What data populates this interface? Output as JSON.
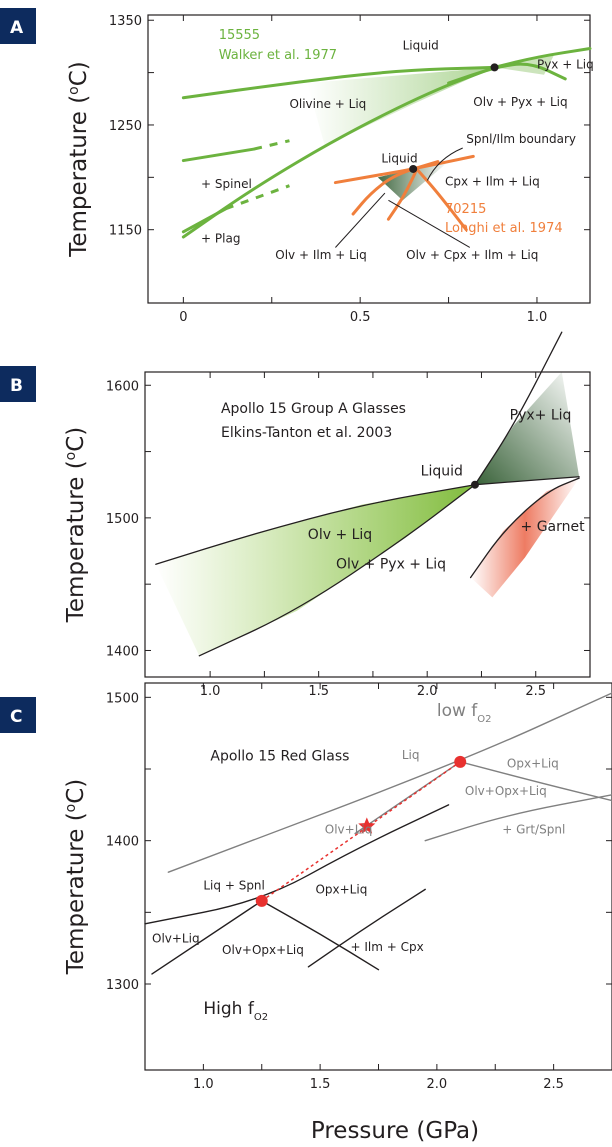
{
  "colors": {
    "green": "#6cb33f",
    "orange": "#f07f3c",
    "grey": "#808080",
    "black": "#231f20",
    "red": "#e8312f",
    "panel_tag": "#0d2b5e"
  },
  "x_axis_label": "Pressure (GPa)",
  "chart_data": [
    {
      "panel": "A",
      "type": "line",
      "ylabel": "Temperature (oC)",
      "xlim": [
        -0.1,
        1.15
      ],
      "ylim": [
        1080,
        1355
      ],
      "xticks": [
        0,
        0.5,
        1.0
      ],
      "xtick_labels": [
        "0",
        "0.5",
        "1.0"
      ],
      "yticks": [
        1150,
        1250,
        1350
      ],
      "ytick_labels": [
        "1150",
        "1250",
        "1350"
      ],
      "annotations": {
        "series_15555": "15555",
        "walker": "Walker et al. 1977",
        "liquid_top": "Liquid",
        "pyx_liq": "Pyx + Liq",
        "olivine_liq": "Olivine + Liq",
        "olv_pyx_liq": "Olv + Pyx + Liq",
        "spnl_ilm": "Spnl/Ilm boundary",
        "liquid_mid": "Liquid",
        "cpx_ilm_liq": "Cpx + Ilm + Liq",
        "spinel": "+ Spinel",
        "series_70215": "70215",
        "longhi": "Longhi et al. 1974",
        "plag": "+ Plag",
        "olv_ilm_liq": "Olv + Ilm + Liq",
        "olv_cpx_ilm_liq": "Olv + Cpx + Ilm + Liq"
      },
      "lines": [
        {
          "name": "15555 liquidus (olivine)",
          "color": "green",
          "points": [
            [
              0,
              1276
            ],
            [
              0.3,
              1290
            ],
            [
              0.6,
              1302
            ],
            [
              0.88,
              1305
            ]
          ]
        },
        {
          "name": "15555 liquidus (pyroxene)",
          "color": "green",
          "points": [
            [
              0.88,
              1305
            ],
            [
              1.0,
              1315
            ],
            [
              1.15,
              1323
            ]
          ]
        },
        {
          "name": "15555 olivine-in lower",
          "color": "green",
          "points": [
            [
              0,
              1143
            ],
            [
              0.2,
              1190
            ],
            [
              0.45,
              1240
            ],
            [
              0.7,
              1282
            ],
            [
              0.88,
              1305
            ]
          ]
        },
        {
          "name": "15555 pyx-in",
          "color": "green",
          "points": [
            [
              0.75,
              1290
            ],
            [
              0.88,
              1305
            ],
            [
              0.98,
              1310
            ],
            [
              1.08,
              1294
            ]
          ]
        },
        {
          "name": "15555 spinel",
          "color": "green",
          "points": [
            [
              0,
              1216
            ],
            [
              0.2,
              1227
            ]
          ],
          "dashed_to": [
            [
              0.2,
              1227
            ],
            [
              0.3,
              1235
            ]
          ]
        },
        {
          "name": "15555 plag",
          "color": "green",
          "points": [
            [
              0,
              1148
            ],
            [
              0.12,
              1170
            ]
          ],
          "dashed_to": [
            [
              0.12,
              1170
            ],
            [
              0.3,
              1192
            ]
          ]
        },
        {
          "name": "70215 liquidus",
          "color": "orange",
          "points": [
            [
              0.43,
              1195
            ],
            [
              0.55,
              1202
            ],
            [
              0.65,
              1208
            ],
            [
              0.82,
              1220
            ]
          ]
        },
        {
          "name": "70215 ilm-in",
          "color": "orange",
          "points": [
            [
              0.48,
              1165
            ],
            [
              0.53,
              1185
            ],
            [
              0.6,
              1203
            ],
            [
              0.72,
              1215
            ]
          ]
        },
        {
          "name": "70215 cpx-in",
          "color": "orange",
          "points": [
            [
              0.58,
              1160
            ],
            [
              0.62,
              1180
            ],
            [
              0.65,
              1200
            ],
            [
              0.66,
              1208
            ]
          ]
        },
        {
          "name": "70215 extra",
          "color": "orange",
          "points": [
            [
              0.66,
              1208
            ],
            [
              0.72,
              1185
            ],
            [
              0.8,
              1150
            ]
          ]
        }
      ],
      "points": [
        [
          0.88,
          1305
        ],
        [
          0.65,
          1208
        ]
      ]
    },
    {
      "panel": "B",
      "type": "line",
      "ylabel": "Temperature (oC)",
      "xlim": [
        0.7,
        2.75
      ],
      "ylim": [
        1380,
        1610
      ],
      "xticks": [
        1.0,
        1.5,
        2.0,
        2.5
      ],
      "xtick_labels": [
        "1.0",
        "1.5",
        "2.0",
        "2.5"
      ],
      "yticks": [
        1400,
        1500,
        1600
      ],
      "ytick_labels": [
        "1400",
        "1500",
        "1600"
      ],
      "annotations": {
        "title1": "Apollo 15 Group A Glasses",
        "title2": "Elkins-Tanton et al. 2003",
        "liquid": "Liquid",
        "pyx_liq": "Pyx+ Liq",
        "olv_liq": "Olv + Liq",
        "garnet": "+ Garnet",
        "olv_pyx_liq": "Olv + Pyx + Liq"
      },
      "lines": [
        {
          "name": "liquidus (olivine)",
          "points": [
            [
              0.75,
              1465
            ],
            [
              1.2,
              1488
            ],
            [
              1.7,
              1510
            ],
            [
              2.22,
              1525
            ]
          ]
        },
        {
          "name": "liquidus (pyroxene)",
          "points": [
            [
              2.22,
              1525
            ],
            [
              2.45,
              1528
            ],
            [
              2.7,
              1531
            ]
          ]
        },
        {
          "name": "pyx-in",
          "points": [
            [
              0.95,
              1396
            ],
            [
              1.4,
              1430
            ],
            [
              1.9,
              1485
            ],
            [
              2.22,
              1525
            ]
          ]
        },
        {
          "name": "pyx upper",
          "points": [
            [
              2.22,
              1525
            ],
            [
              2.4,
              1570
            ],
            [
              2.62,
              1640
            ]
          ]
        },
        {
          "name": "garnet-in",
          "points": [
            [
              2.2,
              1455
            ],
            [
              2.35,
              1490
            ],
            [
              2.55,
              1520
            ],
            [
              2.7,
              1530
            ]
          ]
        }
      ],
      "points": [
        [
          2.22,
          1525
        ]
      ]
    },
    {
      "panel": "C",
      "type": "line",
      "ylabel": "Temperature (oC)",
      "xlim": [
        0.75,
        2.75
      ],
      "ylim": [
        1240,
        1510
      ],
      "xticks": [
        1.0,
        1.5,
        2.0,
        2.5
      ],
      "xtick_labels": [
        "1.0",
        "1.5",
        "2.0",
        "2.5"
      ],
      "yticks": [
        1300,
        1400,
        1500
      ],
      "ytick_labels": [
        "1300",
        "1400",
        "1500"
      ],
      "annotations": {
        "low_fo2": "low f",
        "low_fo2_sub": "O2",
        "title": "Apollo 15 Red Glass",
        "liq": "Liq",
        "opx_liq_top": "Opx+Liq",
        "olv_opx_liq_top": "Olv+Opx+Liq",
        "olv_liq_mid": "Olv+Liq",
        "grt_spnl": "+ Grt/Spnl",
        "liq_spnl": "Liq + Spnl",
        "opx_liq_low": "Opx+Liq",
        "olv_liq_low": "Olv+Liq",
        "olv_opx_liq_low": "Olv+Opx+Liq",
        "ilm_cpx": "+ Ilm + Cpx",
        "high_fo2": "High f",
        "high_fo2_sub": "O2"
      },
      "lines": [
        {
          "name": "low fO2 liquidus",
          "color": "grey",
          "points": [
            [
              0.85,
              1378
            ],
            [
              2.1,
              1455
            ],
            [
              2.75,
              1503
            ]
          ]
        },
        {
          "name": "low fO2 opx boundary",
          "color": "grey",
          "points": [
            [
              2.1,
              1455
            ],
            [
              2.45,
              1440
            ],
            [
              2.75,
              1428
            ]
          ]
        },
        {
          "name": "low fO2 grt",
          "color": "grey",
          "points": [
            [
              1.95,
              1400
            ],
            [
              2.3,
              1418
            ],
            [
              2.75,
              1432
            ]
          ]
        },
        {
          "name": "low fO2 olv-in",
          "color": "grey",
          "points": [
            [
              1.65,
              1405
            ],
            [
              2.1,
              1455
            ]
          ]
        },
        {
          "name": "high fO2 liquidus",
          "color": "black",
          "points": [
            [
              0.75,
              1342
            ],
            [
              1.25,
              1358
            ],
            [
              1.65,
              1394
            ],
            [
              2.05,
              1425
            ]
          ]
        },
        {
          "name": "high fO2 olv",
          "color": "black",
          "points": [
            [
              0.78,
              1307
            ],
            [
              1.25,
              1358
            ]
          ]
        },
        {
          "name": "high fO2 opx",
          "color": "black",
          "points": [
            [
              1.25,
              1358
            ],
            [
              1.5,
              1335
            ],
            [
              1.75,
              1310
            ]
          ]
        },
        {
          "name": "high fO2 ilm",
          "color": "black",
          "points": [
            [
              1.45,
              1312
            ],
            [
              1.7,
              1340
            ],
            [
              1.95,
              1366
            ]
          ]
        }
      ],
      "red_points": [
        [
          1.25,
          1358
        ],
        [
          2.1,
          1455
        ]
      ],
      "star": [
        1.7,
        1410
      ]
    }
  ]
}
